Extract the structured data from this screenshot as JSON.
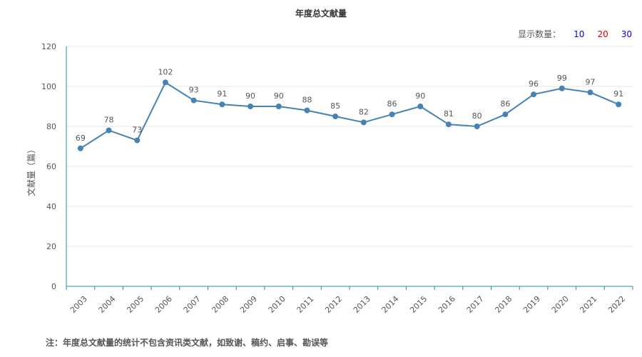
{
  "title": "年度总文献量",
  "display_count": {
    "label": "显示数量：",
    "options": [
      {
        "text": "10",
        "color": "#0000ee"
      },
      {
        "text": "20",
        "color": "#dd0000"
      },
      {
        "text": "30",
        "color": "#0000ee"
      }
    ]
  },
  "footnote": "注：年度总文献量的统计不包含资讯类文献，如致谢、稿约、启事、勘误等",
  "colors": {
    "line": "#4682b4",
    "axis": "#2a8ca0",
    "grid": "#e3e3e3"
  },
  "chart_data": {
    "type": "line",
    "title": "年度总文献量",
    "xlabel": "",
    "ylabel": "文献量（篇）",
    "ylim": [
      0,
      120
    ],
    "yticks": [
      0,
      20,
      40,
      60,
      80,
      100,
      120
    ],
    "grid": true,
    "categories": [
      "2003",
      "2004",
      "2005",
      "2006",
      "2007",
      "2008",
      "2009",
      "2010",
      "2011",
      "2012",
      "2013",
      "2014",
      "2015",
      "2016",
      "2017",
      "2018",
      "2019",
      "2020",
      "2021",
      "2022"
    ],
    "series": [
      {
        "values": [
          69,
          78,
          73,
          102,
          93,
          91,
          90,
          90,
          88,
          85,
          82,
          86,
          90,
          81,
          80,
          86,
          96,
          99,
          97,
          91
        ]
      }
    ]
  }
}
